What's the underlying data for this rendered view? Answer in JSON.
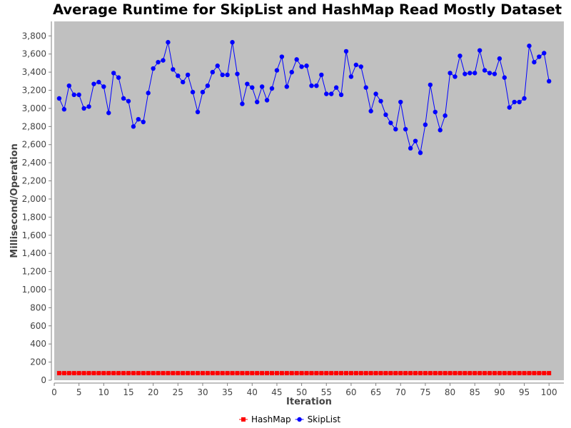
{
  "chart_data": {
    "type": "line",
    "title": "Average Runtime for SkipList and HashMap Read Mostly Dataset",
    "xlabel": "Iteration",
    "ylabel": "Millisecond/Operation",
    "xlim": [
      0,
      103
    ],
    "ylim": [
      0,
      3960
    ],
    "xticks": [
      0,
      5,
      10,
      15,
      20,
      25,
      30,
      35,
      40,
      45,
      50,
      55,
      60,
      65,
      70,
      75,
      80,
      85,
      90,
      95,
      100
    ],
    "yticks": [
      0,
      200,
      400,
      600,
      800,
      1000,
      1200,
      1400,
      1600,
      1800,
      2000,
      2200,
      2400,
      2600,
      2800,
      3000,
      3200,
      3400,
      3600,
      3800
    ],
    "ytick_labels": [
      "0",
      "200",
      "400",
      "600",
      "800",
      "1,000",
      "1,200",
      "1,400",
      "1,600",
      "1,800",
      "2,000",
      "2,200",
      "2,400",
      "2,600",
      "2,800",
      "3,000",
      "3,200",
      "3,400",
      "3,600",
      "3,800"
    ],
    "grid": false,
    "legend_position": "bottom-center",
    "plot_background": "#c0c0c0",
    "series": [
      {
        "name": "HashMap",
        "color": "#ff0000",
        "marker": "square",
        "x": [
          1,
          2,
          3,
          4,
          5,
          6,
          7,
          8,
          9,
          10,
          11,
          12,
          13,
          14,
          15,
          16,
          17,
          18,
          19,
          20,
          21,
          22,
          23,
          24,
          25,
          26,
          27,
          28,
          29,
          30,
          31,
          32,
          33,
          34,
          35,
          36,
          37,
          38,
          39,
          40,
          41,
          42,
          43,
          44,
          45,
          46,
          47,
          48,
          49,
          50,
          51,
          52,
          53,
          54,
          55,
          56,
          57,
          58,
          59,
          60,
          61,
          62,
          63,
          64,
          65,
          66,
          67,
          68,
          69,
          70,
          71,
          72,
          73,
          74,
          75,
          76,
          77,
          78,
          79,
          80,
          81,
          82,
          83,
          84,
          85,
          86,
          87,
          88,
          89,
          90,
          91,
          92,
          93,
          94,
          95,
          96,
          97,
          98,
          99,
          100
        ],
        "values": [
          78,
          78,
          78,
          78,
          78,
          78,
          78,
          78,
          78,
          78,
          78,
          78,
          78,
          78,
          78,
          78,
          78,
          78,
          78,
          78,
          78,
          78,
          78,
          78,
          78,
          78,
          78,
          78,
          78,
          78,
          78,
          78,
          78,
          78,
          78,
          78,
          78,
          78,
          78,
          78,
          78,
          78,
          78,
          78,
          78,
          78,
          78,
          78,
          78,
          78,
          78,
          78,
          78,
          78,
          78,
          78,
          78,
          78,
          78,
          78,
          78,
          78,
          78,
          78,
          78,
          78,
          78,
          78,
          78,
          78,
          78,
          78,
          78,
          78,
          78,
          78,
          78,
          78,
          78,
          78,
          78,
          78,
          78,
          78,
          78,
          78,
          78,
          78,
          78,
          78,
          78,
          78,
          78,
          78,
          78,
          78,
          78,
          78,
          78,
          78
        ]
      },
      {
        "name": "SkipList",
        "color": "#0000ff",
        "marker": "circle",
        "x": [
          1,
          2,
          3,
          4,
          5,
          6,
          7,
          8,
          9,
          10,
          11,
          12,
          13,
          14,
          15,
          16,
          17,
          18,
          19,
          20,
          21,
          22,
          23,
          24,
          25,
          26,
          27,
          28,
          29,
          30,
          31,
          32,
          33,
          34,
          35,
          36,
          37,
          38,
          39,
          40,
          41,
          42,
          43,
          44,
          45,
          46,
          47,
          48,
          49,
          50,
          51,
          52,
          53,
          54,
          55,
          56,
          57,
          58,
          59,
          60,
          61,
          62,
          63,
          64,
          65,
          66,
          67,
          68,
          69,
          70,
          71,
          72,
          73,
          74,
          75,
          76,
          77,
          78,
          79,
          80,
          81,
          82,
          83,
          84,
          85,
          86,
          87,
          88,
          89,
          90,
          91,
          92,
          93,
          94,
          95,
          96,
          97,
          98,
          99,
          100
        ],
        "values": [
          3110,
          2990,
          3250,
          3150,
          3150,
          3000,
          3020,
          3270,
          3290,
          3240,
          2950,
          3390,
          3340,
          3110,
          3080,
          2800,
          2880,
          2850,
          3170,
          3440,
          3510,
          3530,
          3730,
          3430,
          3360,
          3290,
          3370,
          3180,
          2960,
          3180,
          3250,
          3400,
          3470,
          3370,
          3370,
          3730,
          3380,
          3050,
          3270,
          3230,
          3070,
          3240,
          3090,
          3220,
          3420,
          3570,
          3240,
          3400,
          3540,
          3460,
          3470,
          3250,
          3250,
          3370,
          3160,
          3160,
          3230,
          3150,
          3630,
          3350,
          3480,
          3460,
          3230,
          2970,
          3160,
          3080,
          2930,
          2840,
          2770,
          3070,
          2770,
          2560,
          2640,
          2510,
          2820,
          3260,
          2960,
          2760,
          2920,
          3390,
          3350,
          3580,
          3380,
          3390,
          3390,
          3640,
          3420,
          3390,
          3380,
          3550,
          3340,
          3010,
          3070,
          3070,
          3110,
          3690,
          3510,
          3570,
          3610,
          3300
        ]
      }
    ]
  }
}
